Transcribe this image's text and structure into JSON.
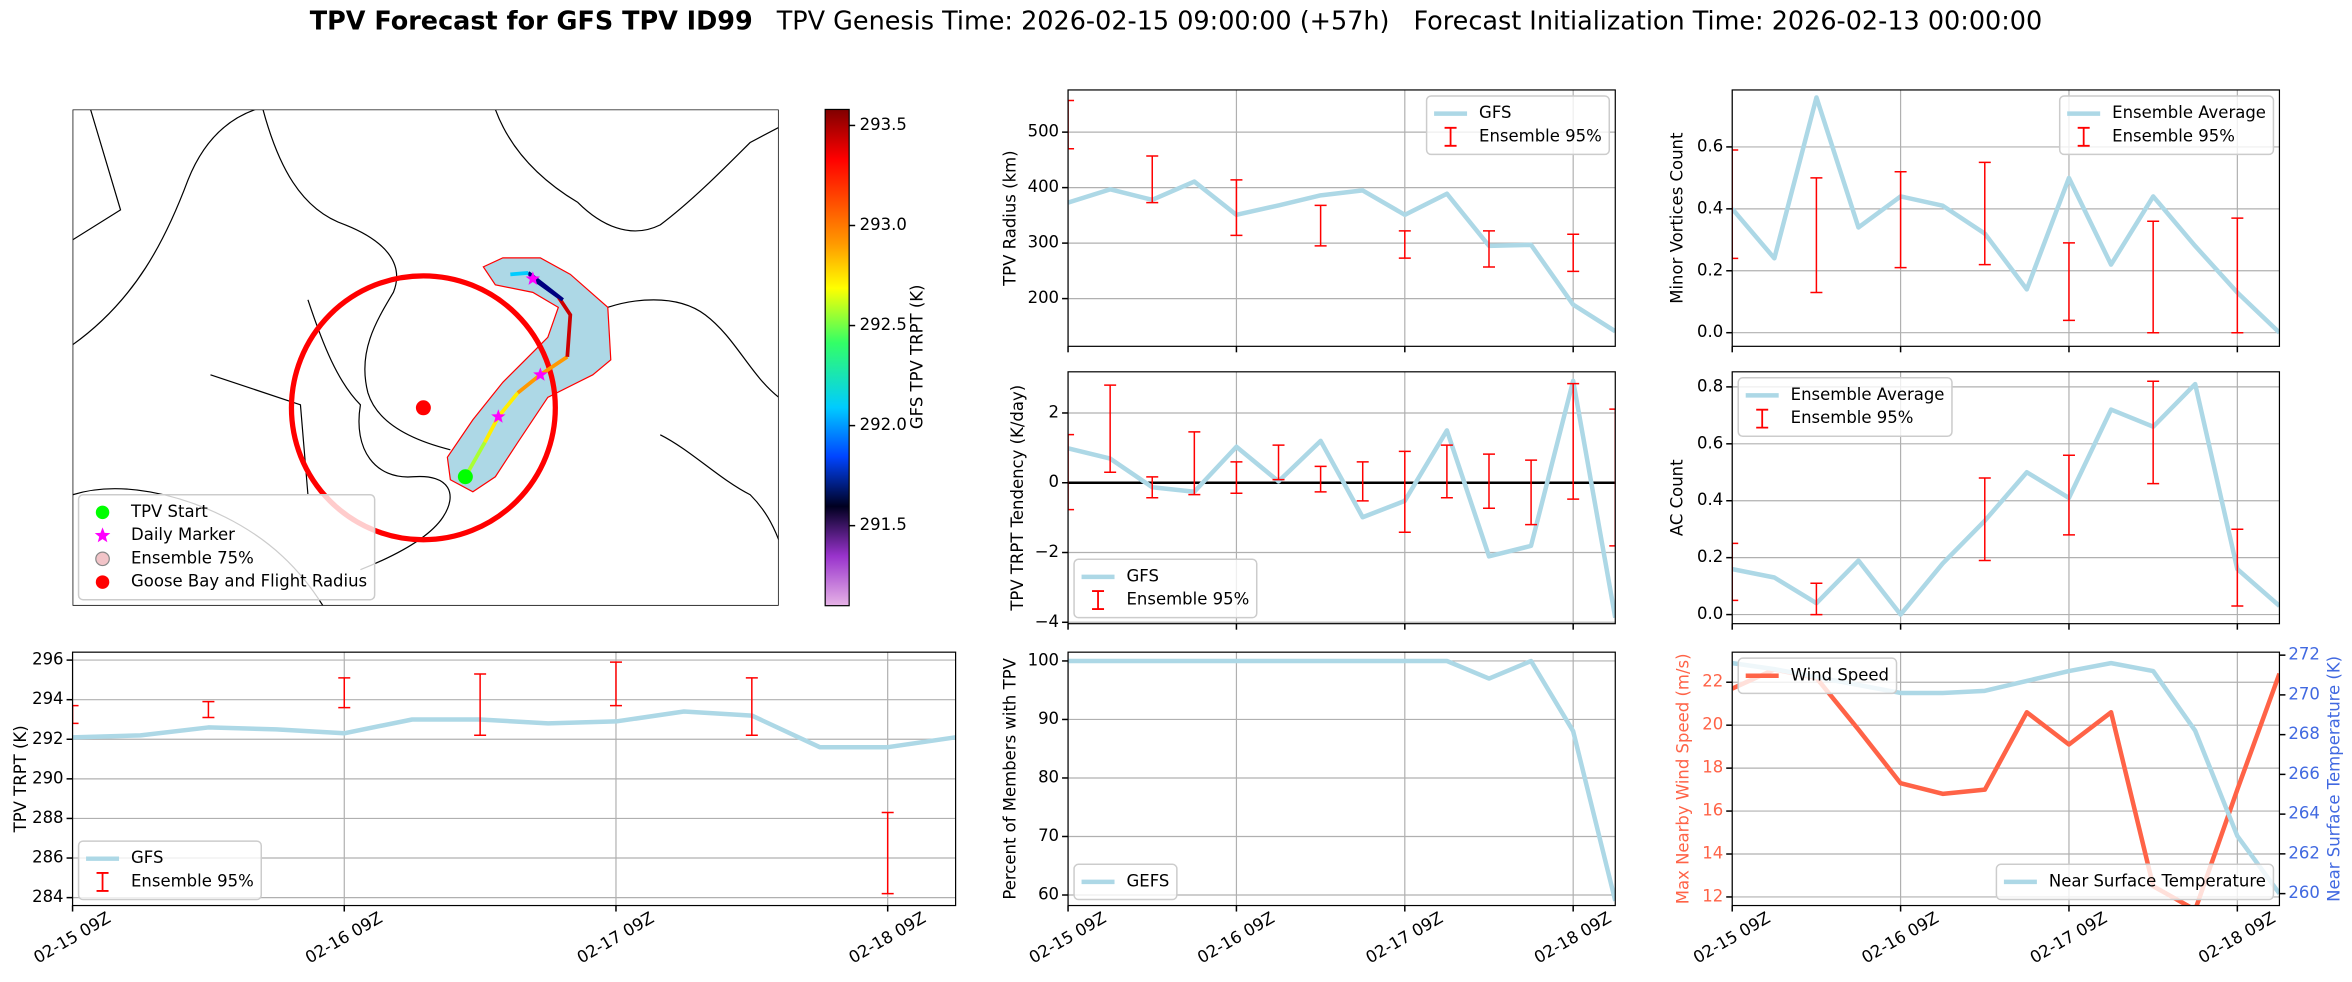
{
  "title": "TPV Forecast for GFS TPV ID99",
  "subtitle_parts": [
    "TPV Genesis Time: 2026-02-15 09:00:00 (+57h)",
    "Forecast Initialization Time: 2026-02-13 00:00:00"
  ],
  "chart_data": [
    {
      "type": "map",
      "colorbar": {
        "label": "GFS TPV TRPT (K)",
        "clim": [
          291.1,
          293.58
        ],
        "ticks": [
          291.5,
          {
            "value": 292,
            "label": "292.0"
          },
          292.5,
          {
            "value": 293,
            "label": "293.0"
          },
          293.5
        ]
      },
      "legend": "lower left",
      "legend_entries": [
        {
          "name": "TPV Start",
          "color": "#00ff00",
          "marker": "circle"
        },
        {
          "name": "Daily Marker",
          "color": "#ff00ff",
          "marker": "star"
        },
        {
          "name": "Ensemble 75%",
          "color": "#f2c4c8",
          "marker": "circle"
        },
        {
          "name": "Goose Bay and Flight Radius",
          "color": "#ff0000",
          "marker": "circle"
        }
      ]
    },
    {
      "type": "line",
      "ylabel": "TPV TRPT (K)",
      "x": [
        0,
        6,
        12,
        18,
        24,
        30,
        36,
        42,
        48,
        54,
        60,
        66,
        72,
        78
      ],
      "xlim": [
        0,
        78
      ],
      "xticks": [
        {
          "value": 0,
          "label": "02-15 09Z"
        },
        {
          "value": 24,
          "label": "02-16 09Z"
        },
        {
          "value": 48,
          "label": "02-17 09Z"
        },
        {
          "value": 72,
          "label": "02-18 09Z"
        }
      ],
      "ylim": [
        283.6,
        296.4
      ],
      "yticks": [
        284,
        286,
        288,
        290,
        292,
        294,
        296
      ],
      "grid": true,
      "legend": "lower left",
      "series": [
        {
          "name": "GFS",
          "type": "line",
          "color": "#add8e6",
          "values": [
            292.1,
            292.2,
            292.6,
            292.5,
            292.3,
            293.0,
            293.0,
            292.8,
            292.9,
            293.4,
            293.2,
            291.6,
            291.6,
            292.1
          ]
        },
        {
          "name": "Ensemble 95%",
          "type": "errorbar",
          "color": "#ff0000",
          "x": [
            0,
            12,
            24,
            36,
            48,
            60,
            72
          ],
          "lower": [
            292.8,
            293.1,
            293.6,
            292.2,
            293.7,
            292.2,
            284.2
          ],
          "upper": [
            293.7,
            293.9,
            295.1,
            295.3,
            295.9,
            295.1,
            288.3
          ]
        }
      ]
    },
    {
      "type": "line",
      "ylabel": "TPV Radius (km)",
      "x": [
        0,
        6,
        12,
        18,
        24,
        30,
        36,
        42,
        48,
        54,
        60,
        66,
        72,
        78
      ],
      "xlim": [
        0,
        78
      ],
      "xticks": [
        0,
        24,
        48,
        72
      ],
      "ylim": [
        114,
        576
      ],
      "yticks": [
        200,
        300,
        400,
        500
      ],
      "grid": true,
      "legend": "upper right",
      "series": [
        {
          "name": "GFS",
          "type": "line",
          "color": "#add8e6",
          "values": [
            373,
            397,
            378,
            411,
            351,
            368,
            386,
            395,
            351,
            389,
            295,
            297,
            189,
            141
          ]
        },
        {
          "name": "Ensemble 95%",
          "type": "errorbar",
          "color": "#ff0000",
          "x": [
            0,
            12,
            24,
            36,
            48,
            60,
            72
          ],
          "lower": [
            470,
            373,
            314,
            295,
            273,
            257,
            249
          ],
          "upper": [
            557,
            457,
            414,
            368,
            322,
            322,
            316
          ]
        }
      ]
    },
    {
      "type": "line",
      "ylabel": "TPV TRPT Tendency (K/day)",
      "x": [
        0,
        6,
        12,
        18,
        24,
        30,
        36,
        42,
        48,
        54,
        60,
        66,
        72,
        78
      ],
      "xlim": [
        0,
        78
      ],
      "xticks": [
        0,
        24,
        48,
        72
      ],
      "ylim": [
        -4.04,
        3.18
      ],
      "yticks": [
        {
          "value": -4,
          "label": "−4"
        },
        {
          "value": -2,
          "label": "−2"
        },
        0,
        2
      ],
      "grid": true,
      "legend": "lower left",
      "hline": {
        "y": 0,
        "color": "#000000"
      },
      "series": [
        {
          "name": "GFS",
          "type": "line",
          "color": "#add8e6",
          "values": [
            0.99,
            0.69,
            -0.13,
            -0.26,
            1.03,
            0.04,
            1.2,
            -0.99,
            -0.52,
            1.5,
            -2.11,
            -1.81,
            2.92,
            -3.87
          ]
        },
        {
          "name": "Ensemble 95%",
          "type": "errorbar",
          "color": "#ff0000",
          "x": [
            0,
            6,
            12,
            18,
            24,
            30,
            36,
            42,
            48,
            54,
            60,
            66,
            72,
            78
          ],
          "lower": [
            -0.77,
            0.3,
            -0.43,
            -0.34,
            -0.3,
            0.09,
            -0.26,
            -0.52,
            -1.42,
            -0.43,
            -0.73,
            -1.2,
            -0.47,
            -1.81
          ],
          "upper": [
            1.38,
            2.8,
            0.17,
            1.46,
            0.6,
            1.08,
            0.47,
            0.6,
            0.9,
            1.08,
            0.82,
            0.65,
            2.84,
            2.11
          ]
        }
      ]
    },
    {
      "type": "line",
      "ylabel": "Percent of Members with TPV",
      "x": [
        0,
        6,
        12,
        18,
        24,
        30,
        36,
        42,
        48,
        54,
        60,
        66,
        72,
        78
      ],
      "xlim": [
        0,
        78
      ],
      "xticks": [
        {
          "value": 0,
          "label": "02-15 09Z"
        },
        {
          "value": 24,
          "label": "02-16 09Z"
        },
        {
          "value": 48,
          "label": "02-17 09Z"
        },
        {
          "value": 72,
          "label": "02-18 09Z"
        }
      ],
      "ylim": [
        58.2,
        101.5
      ],
      "yticks": [
        60,
        70,
        80,
        90,
        100
      ],
      "grid": true,
      "legend": "lower left",
      "series": [
        {
          "name": "GEFS",
          "type": "line",
          "color": "#add8e6",
          "values": [
            100,
            100,
            100,
            100,
            100,
            100,
            100,
            100,
            100,
            100,
            97,
            100,
            88,
            59
          ]
        }
      ]
    },
    {
      "type": "line",
      "ylabel": "Minor Vortices Count",
      "x": [
        0,
        6,
        12,
        18,
        24,
        30,
        36,
        42,
        48,
        54,
        60,
        66,
        72,
        78
      ],
      "xlim": [
        0,
        78
      ],
      "xticks": [
        0,
        24,
        48,
        72
      ],
      "ylim": [
        -0.044,
        0.784
      ],
      "yticks": [
        {
          "value": 0,
          "label": "0.0"
        },
        0.2,
        0.4,
        0.6
      ],
      "grid": true,
      "legend": "upper right",
      "series": [
        {
          "name": "Ensemble Average",
          "type": "line",
          "color": "#add8e6",
          "values": [
            0.4,
            0.24,
            0.76,
            0.34,
            0.44,
            0.41,
            0.32,
            0.14,
            0.5,
            0.22,
            0.44,
            0.28,
            0.13,
            0.0
          ]
        },
        {
          "name": "Ensemble 95%",
          "type": "errorbar",
          "color": "#ff0000",
          "x": [
            0,
            12,
            24,
            36,
            48,
            60,
            72
          ],
          "lower": [
            0.24,
            0.13,
            0.21,
            0.22,
            0.04,
            0.0,
            0.0
          ],
          "upper": [
            0.59,
            0.5,
            0.52,
            0.55,
            0.29,
            0.36,
            0.37
          ]
        }
      ]
    },
    {
      "type": "line",
      "ylabel": "AC Count",
      "x": [
        0,
        6,
        12,
        18,
        24,
        30,
        36,
        42,
        48,
        54,
        60,
        66,
        72,
        78
      ],
      "xlim": [
        0,
        78
      ],
      "xticks": [
        0,
        24,
        48,
        72
      ],
      "ylim": [
        -0.032,
        0.853
      ],
      "yticks": [
        {
          "value": 0,
          "label": "0.0"
        },
        0.2,
        0.4,
        0.6,
        0.8
      ],
      "grid": true,
      "legend": "upper left",
      "series": [
        {
          "name": "Ensemble Average",
          "type": "line",
          "color": "#add8e6",
          "values": [
            0.16,
            0.13,
            0.04,
            0.19,
            0.0,
            0.18,
            0.33,
            0.5,
            0.41,
            0.72,
            0.66,
            0.81,
            0.16,
            0.03
          ]
        },
        {
          "name": "Ensemble 95%",
          "type": "errorbar",
          "color": "#ff0000",
          "x": [
            0,
            12,
            36,
            48,
            60,
            72
          ],
          "lower": [
            0.05,
            0.0,
            0.19,
            0.28,
            0.46,
            0.03
          ],
          "upper": [
            0.25,
            0.11,
            0.48,
            0.56,
            0.82,
            0.3
          ]
        }
      ]
    },
    {
      "type": "line",
      "ylabel": "Max Nearby Wind Speed (m/s)",
      "ylabel_color": "#ff6347",
      "y2label": "Near Surface Temperature (K)",
      "y2label_color": "#4169e1",
      "x": [
        0,
        6,
        12,
        18,
        24,
        30,
        36,
        42,
        48,
        54,
        60,
        66,
        72,
        78
      ],
      "xlim": [
        0,
        78
      ],
      "xticks": [
        {
          "value": 0,
          "label": "02-15 09Z"
        },
        {
          "value": 24,
          "label": "02-16 09Z"
        },
        {
          "value": 48,
          "label": "02-17 09Z"
        },
        {
          "value": 72,
          "label": "02-18 09Z"
        }
      ],
      "ylim": [
        11.6,
        23.4
      ],
      "yticks": [
        12,
        14,
        16,
        18,
        20,
        22
      ],
      "y2lim": [
        259.4,
        272.15
      ],
      "y2ticks": [
        260,
        262,
        264,
        266,
        268,
        270,
        272
      ],
      "grid": true,
      "series": [
        {
          "name": "Wind Speed",
          "type": "line",
          "color": "#ff6347",
          "legend": "upper left",
          "values": [
            21.7,
            22.6,
            22.2,
            19.8,
            17.3,
            16.8,
            17.0,
            20.6,
            19.1,
            20.6,
            12.5,
            11.4,
            17.0,
            22.4
          ]
        },
        {
          "name": "Near Surface Temperature",
          "type": "line",
          "axis": "y2",
          "color": "#add8e6",
          "legend": "lower right",
          "values": [
            271.6,
            271.3,
            270.9,
            270.5,
            270.1,
            270.1,
            270.2,
            270.7,
            271.2,
            271.6,
            271.2,
            268.2,
            262.9,
            260.0
          ]
        }
      ]
    }
  ]
}
